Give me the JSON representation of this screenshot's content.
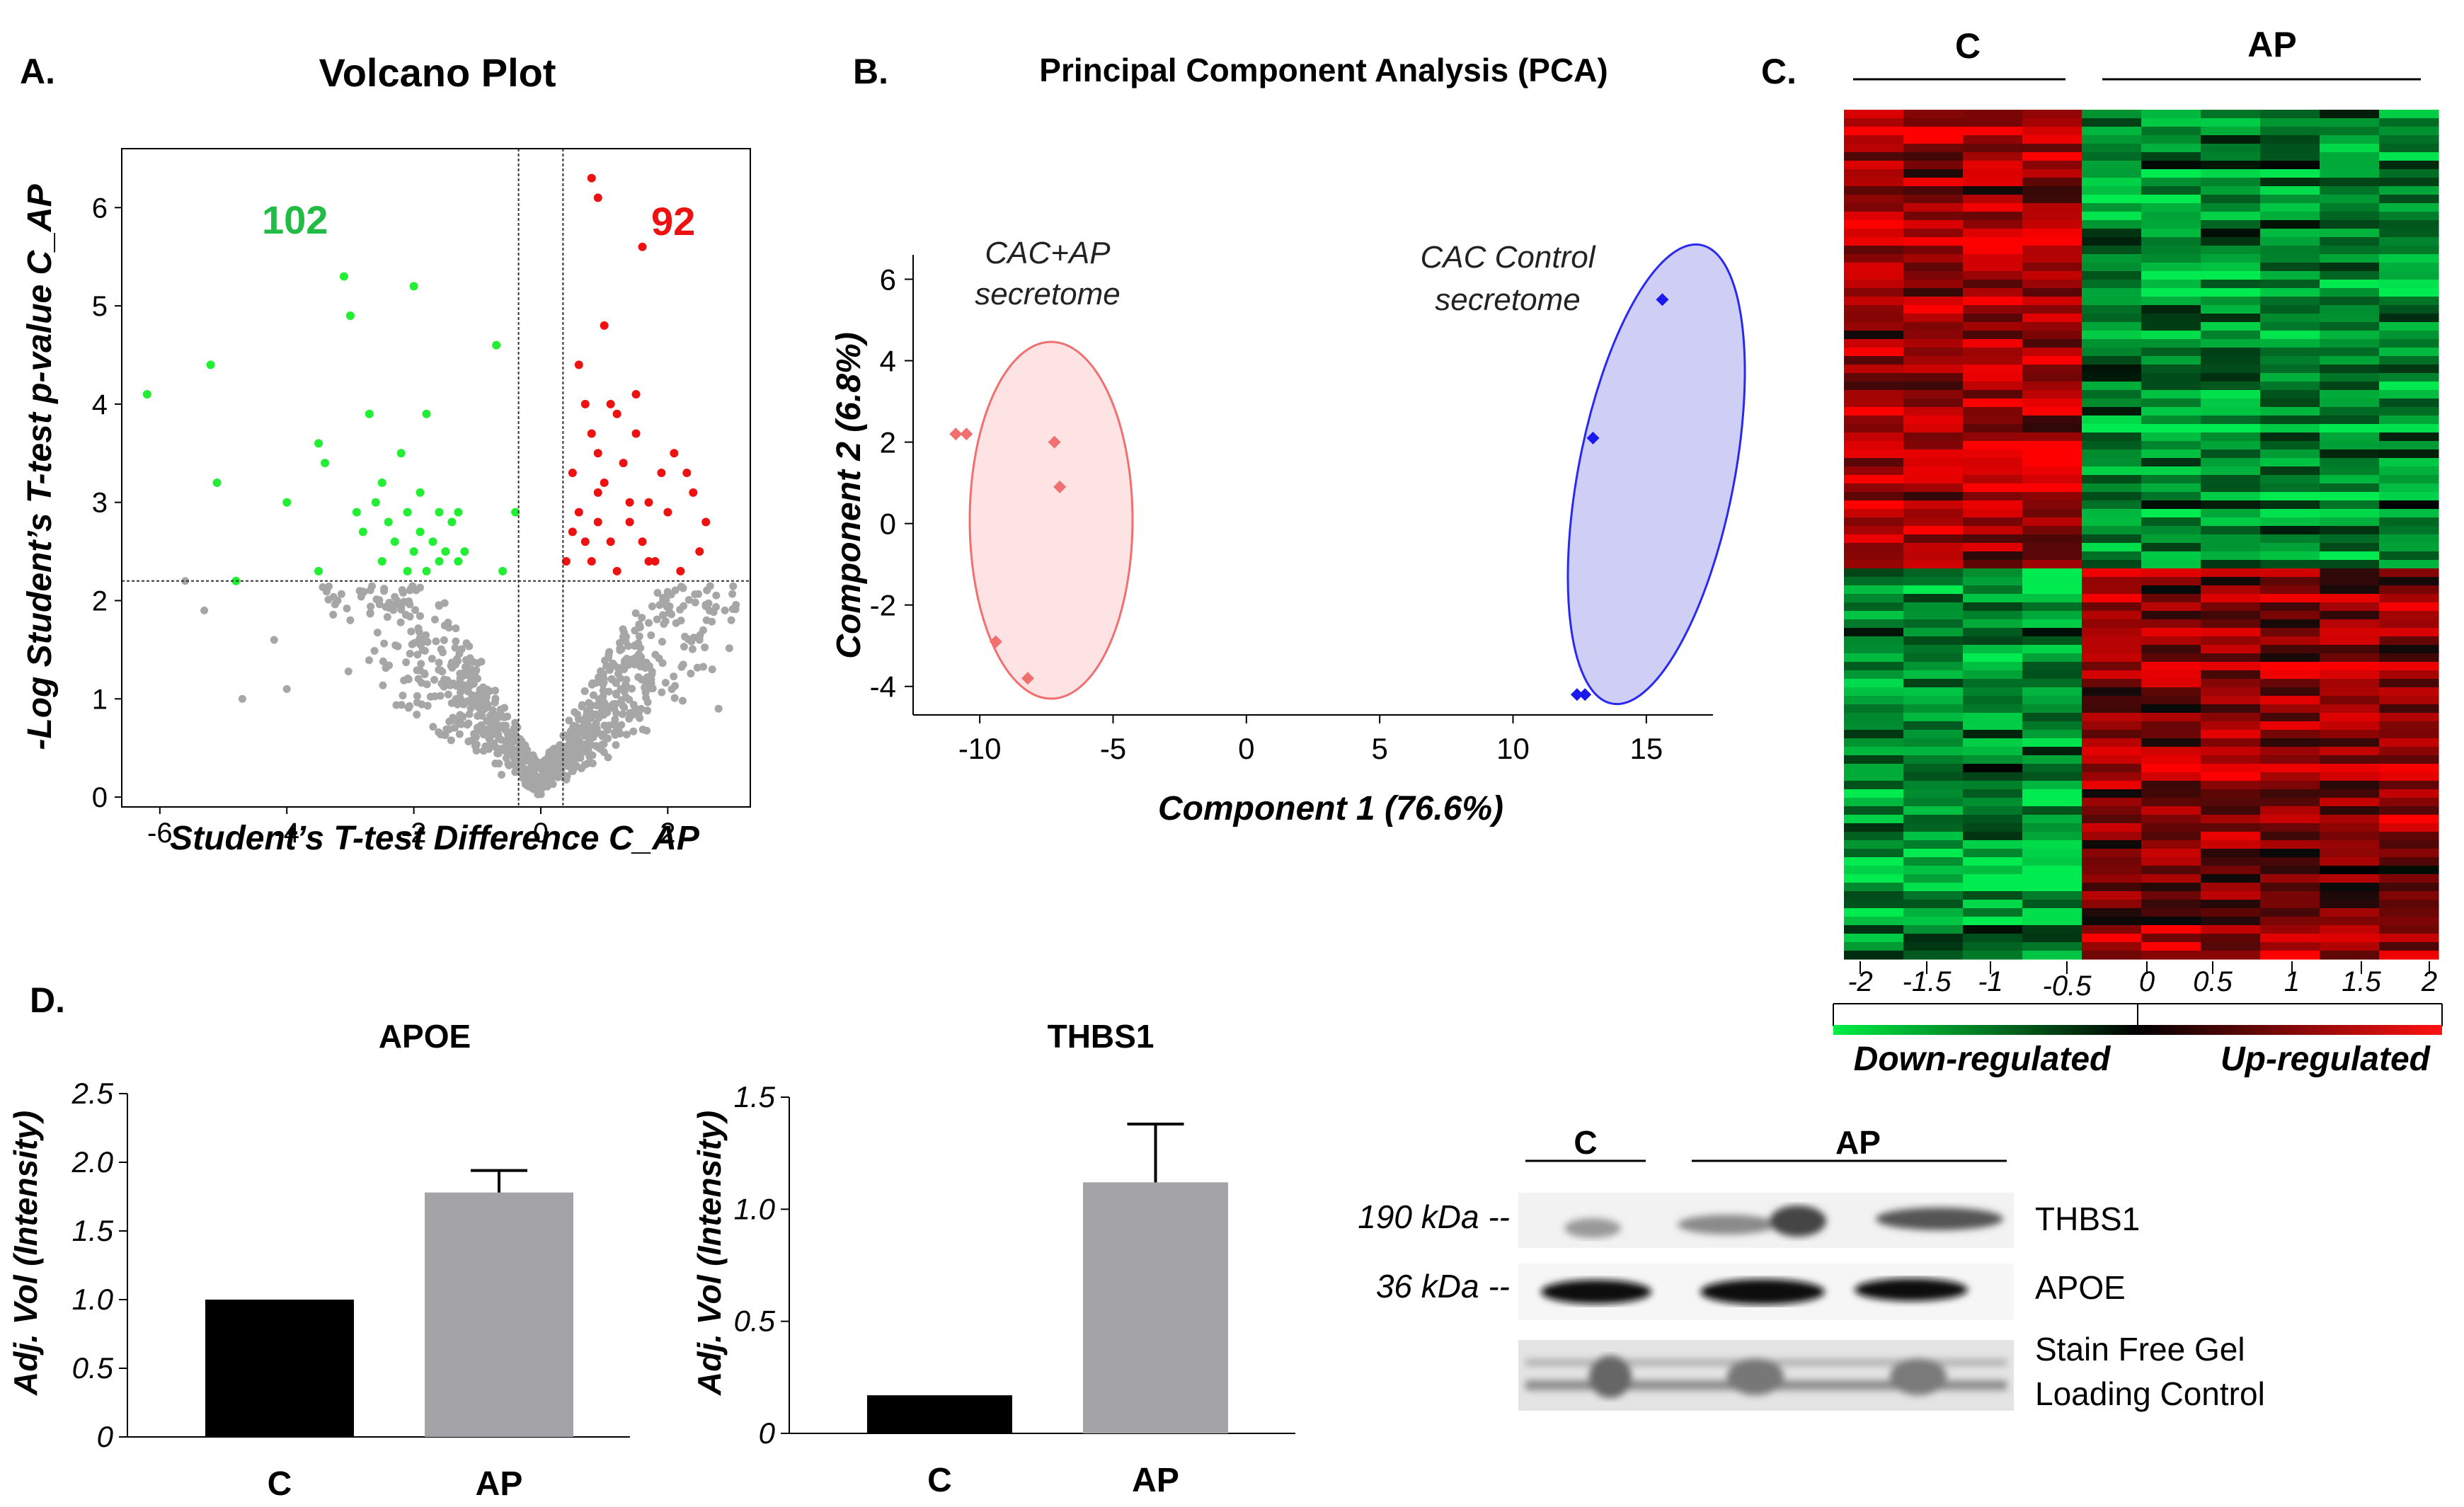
{
  "panel_labels": {
    "a": "A.",
    "b": "B.",
    "c": "C.",
    "d": "D."
  },
  "colors": {
    "green": "#22ee33",
    "red": "#ee1111",
    "grey": "#a6a6a6",
    "pca_red": "#f07070",
    "pca_blue": "#1a1aee",
    "bar_black": "#000000",
    "bar_grey": "#a3a3a8"
  },
  "chart_data": [
    {
      "id": "volcano",
      "type": "scatter",
      "title": "Volcano Plot",
      "xlabel": "Student’s T-test Difference C_AP",
      "ylabel": "-Log Student’s T-test p-value C_AP",
      "xlim": [
        -6.6,
        3.3
      ],
      "ylim": [
        -0.1,
        6.6
      ],
      "xticks": [
        -6,
        -4,
        -2,
        0,
        2
      ],
      "yticks": [
        0,
        1,
        2,
        3,
        4,
        5,
        6
      ],
      "threshold_y": 2.2,
      "threshold_x": [
        -0.35,
        0.35
      ],
      "counts": {
        "down": "102",
        "up": "92"
      },
      "down_points": [
        [
          -6.2,
          4.1
        ],
        [
          -5.2,
          4.4
        ],
        [
          -5.1,
          3.2
        ],
        [
          -4.8,
          2.2
        ],
        [
          -4.0,
          3.0
        ],
        [
          -3.5,
          2.3
        ],
        [
          -3.5,
          3.6
        ],
        [
          -3.4,
          3.4
        ],
        [
          -3.1,
          5.3
        ],
        [
          -3.0,
          4.9
        ],
        [
          -2.9,
          2.9
        ],
        [
          -2.8,
          2.7
        ],
        [
          -2.7,
          3.9
        ],
        [
          -2.6,
          3.0
        ],
        [
          -2.5,
          2.4
        ],
        [
          -2.5,
          3.2
        ],
        [
          -2.4,
          2.8
        ],
        [
          -2.3,
          2.6
        ],
        [
          -2.2,
          3.5
        ],
        [
          -2.1,
          2.3
        ],
        [
          -2.1,
          2.9
        ],
        [
          -2.0,
          5.2
        ],
        [
          -2.0,
          2.5
        ],
        [
          -1.9,
          3.1
        ],
        [
          -1.9,
          2.7
        ],
        [
          -1.8,
          2.3
        ],
        [
          -1.8,
          3.9
        ],
        [
          -1.7,
          2.6
        ],
        [
          -1.6,
          2.4
        ],
        [
          -1.6,
          2.9
        ],
        [
          -1.5,
          2.5
        ],
        [
          -1.4,
          2.8
        ],
        [
          -1.3,
          2.4
        ],
        [
          -0.7,
          4.6
        ],
        [
          -0.6,
          2.3
        ],
        [
          -0.4,
          2.9
        ],
        [
          -1.2,
          2.5
        ],
        [
          -1.3,
          2.9
        ]
      ],
      "up_points": [
        [
          0.8,
          6.3
        ],
        [
          0.9,
          6.1
        ],
        [
          0.6,
          4.4
        ],
        [
          0.7,
          4.0
        ],
        [
          0.8,
          3.7
        ],
        [
          0.9,
          3.5
        ],
        [
          1.0,
          4.8
        ],
        [
          0.5,
          3.3
        ],
        [
          0.6,
          2.9
        ],
        [
          0.7,
          2.6
        ],
        [
          0.8,
          2.4
        ],
        [
          0.9,
          2.8
        ],
        [
          1.0,
          3.2
        ],
        [
          1.1,
          2.6
        ],
        [
          1.2,
          3.9
        ],
        [
          1.2,
          2.3
        ],
        [
          1.3,
          3.4
        ],
        [
          1.4,
          2.8
        ],
        [
          1.5,
          3.7
        ],
        [
          1.6,
          2.6
        ],
        [
          1.6,
          5.6
        ],
        [
          1.7,
          3.0
        ],
        [
          1.8,
          2.4
        ],
        [
          1.9,
          3.3
        ],
        [
          2.0,
          2.9
        ],
        [
          2.1,
          3.5
        ],
        [
          2.2,
          2.3
        ],
        [
          2.4,
          3.1
        ],
        [
          2.5,
          2.5
        ],
        [
          2.6,
          2.8
        ],
        [
          1.4,
          3.0
        ],
        [
          1.1,
          4.0
        ],
        [
          0.4,
          2.4
        ],
        [
          0.5,
          2.7
        ],
        [
          1.5,
          4.1
        ],
        [
          2.3,
          3.3
        ],
        [
          0.9,
          3.1
        ],
        [
          1.7,
          2.4
        ]
      ]
    },
    {
      "id": "pca",
      "type": "scatter",
      "title": "Principal Component Analysis (PCA)",
      "xlabel": "Component 1 (76.6%)",
      "ylabel": "Component 2 (6.8%)",
      "xlim": [
        -12.5,
        17.5
      ],
      "ylim": [
        -4.7,
        6.6
      ],
      "xticks": [
        -10,
        -5,
        0,
        5,
        10,
        15
      ],
      "yticks": [
        -4,
        -2,
        0,
        2,
        4,
        6
      ],
      "groups": [
        {
          "name": "CAC+AP secretome",
          "label_line1": "CAC+AP",
          "label_line2": "secretome",
          "points": [
            [
              -10.9,
              2.2
            ],
            [
              -10.5,
              2.2
            ],
            [
              -7.2,
              2.0
            ],
            [
              -7.0,
              0.9
            ],
            [
              -9.4,
              -2.9
            ],
            [
              -8.2,
              -3.8
            ]
          ]
        },
        {
          "name": "CAC Control secretome",
          "label_line1": "CAC Control",
          "label_line2": "secretome",
          "points": [
            [
              15.6,
              5.5
            ],
            [
              13.0,
              2.1
            ],
            [
              12.4,
              -4.2
            ],
            [
              12.7,
              -4.2
            ]
          ]
        }
      ]
    },
    {
      "id": "heatmap",
      "type": "heatmap",
      "groups": [
        "C",
        "AP"
      ],
      "scale_ticks": [
        "-2",
        "-1.5",
        "-1",
        "-0.5",
        "0",
        "0.5",
        "1",
        "1.5",
        "2"
      ],
      "legend_down": "Down-regulated",
      "legend_up": "Up-regulated"
    },
    {
      "id": "apoe",
      "type": "bar",
      "title": "APOE",
      "ylabel": "Adj. Vol (Intensity)",
      "categories": [
        "C",
        "AP"
      ],
      "values": [
        1.0,
        1.78
      ],
      "errors": [
        0,
        0.16
      ],
      "ylim": [
        0,
        2.5
      ],
      "yticks": [
        "0",
        "0.5",
        "1.0",
        "1.5",
        "2.0",
        "2.5"
      ]
    },
    {
      "id": "thbs1",
      "type": "bar",
      "title": "THBS1",
      "ylabel": "Adj. Vol (Intensity)",
      "categories": [
        "C",
        "AP"
      ],
      "values": [
        0.17,
        1.12
      ],
      "errors": [
        0,
        0.26
      ],
      "ylim": [
        0,
        1.5
      ],
      "yticks": [
        "0",
        "0.5",
        "1.0",
        "1.5"
      ]
    }
  ],
  "western_blot": {
    "groups": [
      "C",
      "AP"
    ],
    "markers": [
      "190 kDa --",
      "36 kDa --"
    ],
    "bands": [
      "THBS1",
      "APOE",
      "Stain Free Gel",
      "Loading Control"
    ]
  }
}
